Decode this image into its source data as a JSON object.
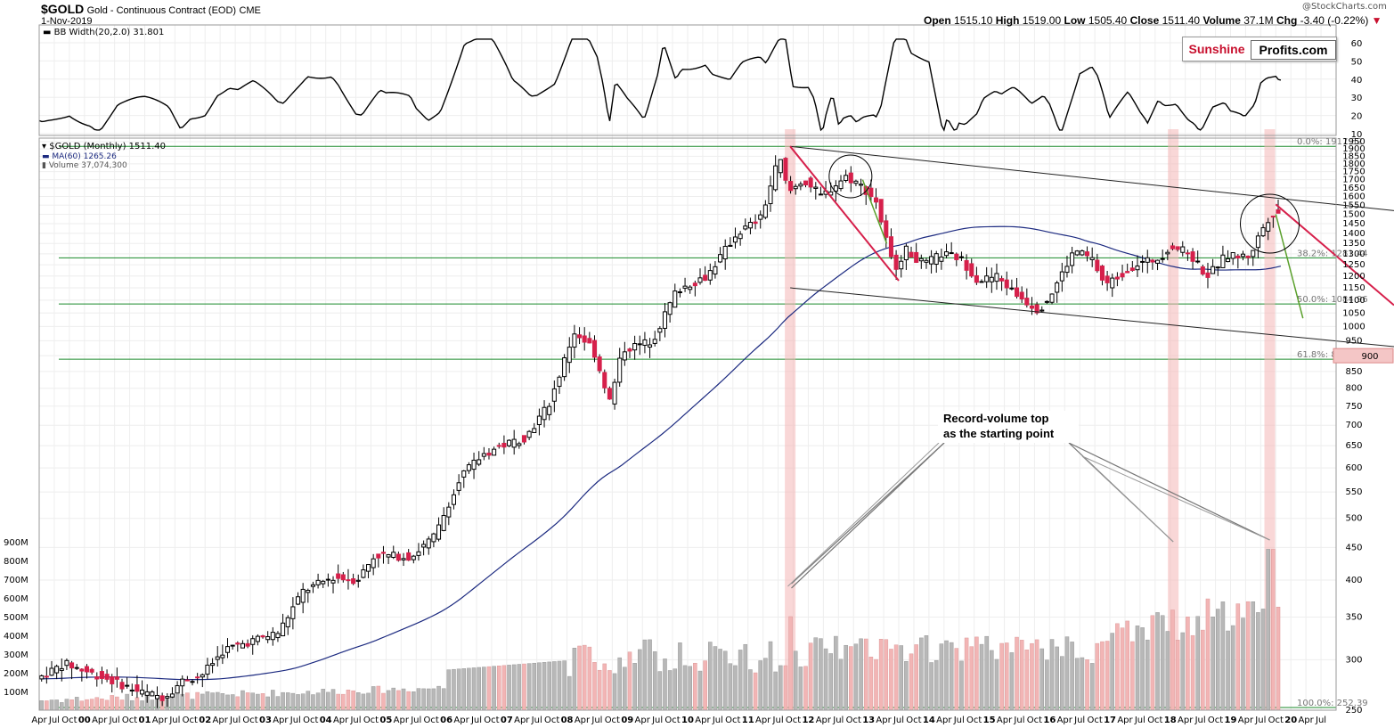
{
  "header": {
    "symbol": "$GOLD",
    "name": "Gold - Continuous Contract (EOD)",
    "exchange": "CME",
    "date": "1-Nov-2019",
    "watermark": "@StockCharts.com",
    "open_label": "Open",
    "open": "1515.10",
    "high_label": "High",
    "high": "1519.00",
    "low_label": "Low",
    "low": "1505.40",
    "close_label": "Close",
    "close": "1511.40",
    "volume_label": "Volume",
    "volume": "37.1M",
    "chg_label": "Chg",
    "chg": "-3.40 (-0.22%)"
  },
  "logo": {
    "part1": "Sunshine",
    "part2": "Profits.com"
  },
  "bb_panel": {
    "legend": "BB Width(20,2.0) 31.801",
    "ticks": [
      60,
      50,
      40,
      30,
      20,
      10
    ]
  },
  "price_legend": {
    "main": "$GOLD (Monthly) 1511.40",
    "ma": "MA(60) 1265.26",
    "vol": "Volume 37,074,300"
  },
  "annotation": {
    "line1": "Record-volume top",
    "line2": "as the starting point"
  },
  "chart_data": {
    "type": "candlestick",
    "y_scale": "log",
    "y_ticks": [
      1950,
      1900,
      1850,
      1800,
      1750,
      1700,
      1650,
      1600,
      1550,
      1500,
      1450,
      1400,
      1350,
      1300,
      1250,
      1200,
      1150,
      1100,
      1050,
      1000,
      950,
      900,
      850,
      800,
      750,
      700,
      650,
      600,
      550,
      500,
      450,
      400,
      350,
      300,
      250
    ],
    "volume_ticks": [
      "900M",
      "800M",
      "700M",
      "600M",
      "500M",
      "400M",
      "300M",
      "200M",
      "100M"
    ],
    "x_labels": [
      "Apr",
      "Jul",
      "Oct",
      "00",
      "Apr",
      "Jul",
      "Oct",
      "01",
      "Apr",
      "Jul",
      "Oct",
      "02",
      "Apr",
      "Jul",
      "Oct",
      "03",
      "Apr",
      "Jul",
      "Oct",
      "04",
      "Apr",
      "Jul",
      "Oct",
      "05",
      "Apr",
      "Jul",
      "Oct",
      "06",
      "Apr",
      "Jul",
      "Oct",
      "07",
      "Apr",
      "Jul",
      "Oct",
      "08",
      "Apr",
      "Jul",
      "Oct",
      "09",
      "Apr",
      "Jul",
      "Oct",
      "10",
      "Apr",
      "Jul",
      "Oct",
      "11",
      "Apr",
      "Jul",
      "Oct",
      "12",
      "Apr",
      "Jul",
      "Oct",
      "13",
      "Apr",
      "Jul",
      "Oct",
      "14",
      "Apr",
      "Jul",
      "Oct",
      "15",
      "Apr",
      "Jul",
      "Oct",
      "16",
      "Apr",
      "Jul",
      "Oct",
      "17",
      "Apr",
      "Jul",
      "Oct",
      "18",
      "Apr",
      "Jul",
      "Oct",
      "19",
      "Apr",
      "Jul",
      "Oct",
      "20",
      "Apr",
      "Jul"
    ],
    "fib_levels": [
      {
        "label": "0.0%: 1917.52",
        "value": 1917.52
      },
      {
        "label": "38.2%: 1281.44",
        "value": 1281.44
      },
      {
        "label": "50.0%: 1084.96",
        "value": 1084.96
      },
      {
        "label": "61.8%: 888.47",
        "value": 888.47
      },
      {
        "label": "100.0%: 252.39",
        "value": 252.39
      }
    ],
    "highlight_value": "900",
    "price_path": [
      [
        1999.3,
        280
      ],
      [
        1999.75,
        296
      ],
      [
        2000.5,
        279
      ],
      [
        2001.0,
        267
      ],
      [
        2001.4,
        262
      ],
      [
        2001.75,
        280
      ],
      [
        2002.0,
        282
      ],
      [
        2002.4,
        311
      ],
      [
        2002.9,
        322
      ],
      [
        2003.3,
        331
      ],
      [
        2003.7,
        384
      ],
      [
        2004.2,
        404
      ],
      [
        2004.6,
        400
      ],
      [
        2004.9,
        438
      ],
      [
        2005.5,
        435
      ],
      [
        2005.9,
        470
      ],
      [
        2006.3,
        580
      ],
      [
        2006.7,
        630
      ],
      [
        2007.0,
        650
      ],
      [
        2007.4,
        670
      ],
      [
        2007.8,
        760
      ],
      [
        2008.2,
        980
      ],
      [
        2008.5,
        930
      ],
      [
        2008.8,
        760
      ],
      [
        2009.0,
        920
      ],
      [
        2009.5,
        950
      ],
      [
        2009.9,
        1140
      ],
      [
        2010.4,
        1200
      ],
      [
        2010.9,
        1400
      ],
      [
        2011.3,
        1480
      ],
      [
        2011.6,
        1850
      ],
      [
        2011.75,
        1620
      ],
      [
        2012.0,
        1700
      ],
      [
        2012.3,
        1600
      ],
      [
        2012.7,
        1720
      ],
      [
        2012.9,
        1680
      ],
      [
        2013.2,
        1580
      ],
      [
        2013.5,
        1230
      ],
      [
        2013.7,
        1320
      ],
      [
        2014.0,
        1250
      ],
      [
        2014.3,
        1300
      ],
      [
        2014.6,
        1280
      ],
      [
        2014.9,
        1180
      ],
      [
        2015.2,
        1200
      ],
      [
        2015.5,
        1130
      ],
      [
        2015.9,
        1060
      ],
      [
        2016.1,
        1120
      ],
      [
        2016.5,
        1320
      ],
      [
        2016.8,
        1270
      ],
      [
        2017.0,
        1160
      ],
      [
        2017.5,
        1250
      ],
      [
        2017.9,
        1280
      ],
      [
        2018.1,
        1340
      ],
      [
        2018.4,
        1300
      ],
      [
        2018.7,
        1200
      ],
      [
        2019.0,
        1290
      ],
      [
        2019.4,
        1290
      ],
      [
        2019.6,
        1420
      ],
      [
        2019.75,
        1500
      ],
      [
        2019.83,
        1511
      ]
    ]
  }
}
